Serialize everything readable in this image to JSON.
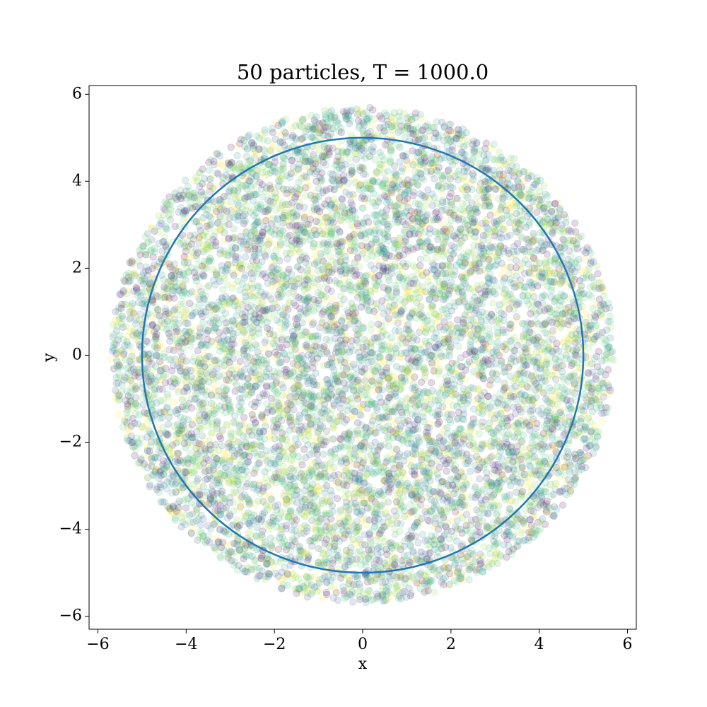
{
  "chart_data": {
    "type": "scatter",
    "title": "50 particles, T = 1000.0",
    "xlabel": "x",
    "ylabel": "y",
    "xlim": [
      -6.2,
      6.2
    ],
    "ylim": [
      -6.3,
      6.2
    ],
    "xticks": [
      -6,
      -4,
      -2,
      0,
      2,
      4,
      6
    ],
    "yticks": [
      -6,
      -4,
      -2,
      0,
      2,
      4,
      6
    ],
    "grid": false,
    "colormap": "viridis",
    "point_alpha": 0.15,
    "scatter_cloud": {
      "description_source": "particle positions sampled over time",
      "center": [
        0,
        0
      ],
      "approx_radius": 5.45,
      "max_radius": 5.7
    },
    "series": [
      {
        "type": "circle",
        "center": [
          0,
          0
        ],
        "radius": 5.0,
        "color": "#1f77b4"
      }
    ]
  }
}
